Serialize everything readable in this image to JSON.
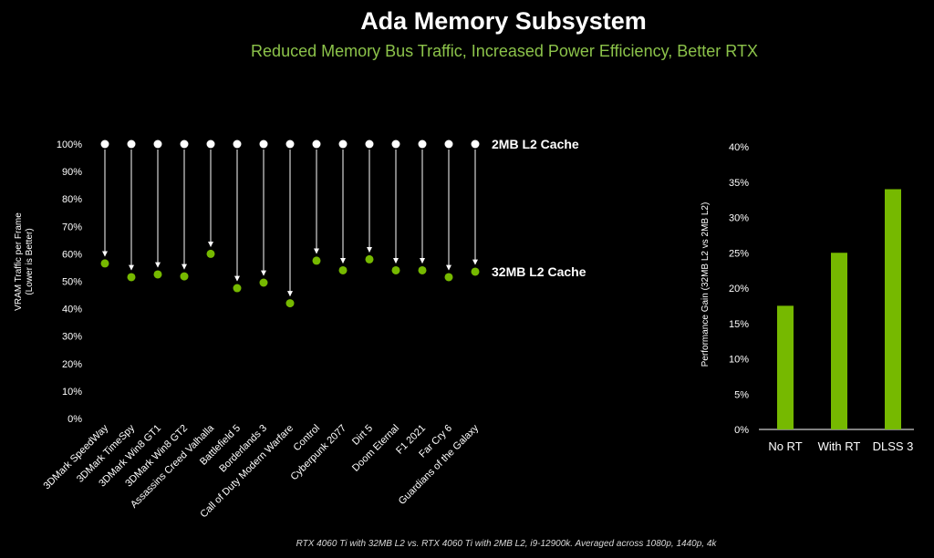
{
  "header": {
    "title": "Ada Memory Subsystem",
    "subtitle": "Reduced Memory Bus Traffic, Increased Power Efficiency, Better RTX"
  },
  "footnote": "RTX 4060 Ti with 32MB L2 vs. RTX 4060 Ti with 2MB L2, i9-12900k. Averaged across 1080p, 1440p, 4k",
  "colors": {
    "accent": "#76b900",
    "marker_top": "#ffffff",
    "background": "#000000",
    "tick_text": "#ffffff"
  },
  "chart_data": [
    {
      "type": "scatter",
      "ylabel": "VRAM Traffic per Frame (Lower is Better)",
      "ylabel_lines": [
        "VRAM Traffic per Frame",
        "(Lower is Better)"
      ],
      "yticks": [
        "0%",
        "10%",
        "20%",
        "30%",
        "40%",
        "50%",
        "60%",
        "70%",
        "80%",
        "90%",
        "100%"
      ],
      "ylim": [
        0,
        100
      ],
      "categories": [
        "3DMark SpeedWay",
        "3DMark TimeSpy",
        "3DMark Win8 GT1",
        "3DMark Win8 GT2",
        "Assassins Creed Valhalla",
        "Battlefield 5",
        "Borderlands 3",
        "Call of Duty Modern Warfare",
        "Control",
        "Cyberpunk 2077",
        "Dirt 5",
        "Doom Eternal",
        "F1 2021",
        "Far Cry 6",
        "Guardians of the Galaxy"
      ],
      "series": [
        {
          "name": "2MB L2 Cache",
          "values": [
            100,
            100,
            100,
            100,
            100,
            100,
            100,
            100,
            100,
            100,
            100,
            100,
            100,
            100,
            100
          ]
        },
        {
          "name": "32MB L2 Cache",
          "values": [
            56.5,
            51.5,
            52.5,
            51.8,
            60,
            47.5,
            49.5,
            42,
            57.5,
            54,
            58,
            54,
            54,
            51.5,
            53.5
          ]
        }
      ],
      "grid": false
    },
    {
      "type": "bar",
      "ylabel": "Performance Gain (32MB L2 vs 2MB L2)",
      "yticks": [
        "0%",
        "5%",
        "10%",
        "15%",
        "20%",
        "25%",
        "30%",
        "35%",
        "40%"
      ],
      "ylim": [
        0,
        40
      ],
      "categories": [
        "No RT",
        "With RT",
        "DLSS 3"
      ],
      "values": [
        17.5,
        25,
        34
      ],
      "grid": false
    }
  ]
}
